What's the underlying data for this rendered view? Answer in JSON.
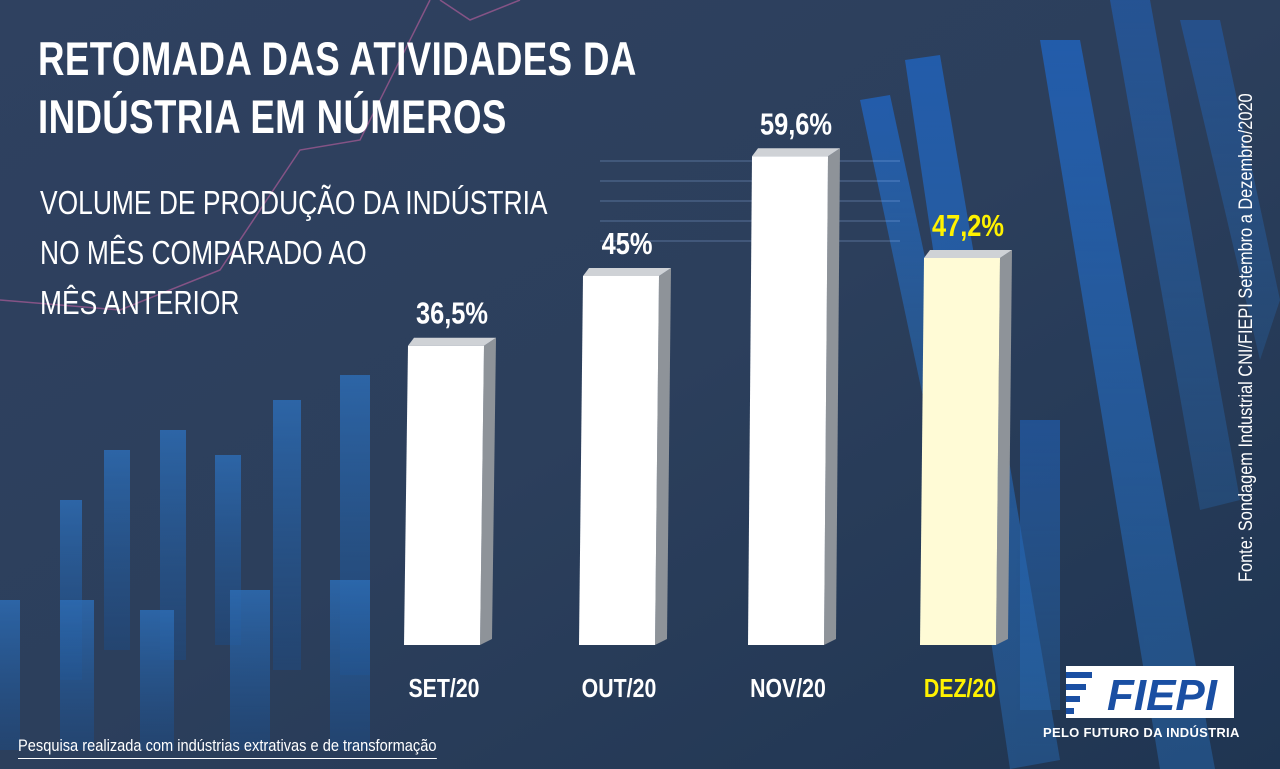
{
  "header": {
    "title_line1": "RETOMADA DAS ATIVIDADES DA",
    "title_line2": "INDÚSTRIA EM NÚMEROS",
    "subtitle_line1": "VOLUME DE PRODUÇÃO DA INDÚSTRIA",
    "subtitle_line2": "NO MÊS COMPARADO AO",
    "subtitle_line3": "MÊS ANTERIOR"
  },
  "source": "Fonte: Sondagem Industrial CNI/FIEPI Setembro a Dezembro/2020",
  "footnote": "Pesquisa realizada com indústrias extrativas e de transformação",
  "brand": {
    "logo_text": "FIEPI",
    "tagline": "PELO FUTURO DA INDÚSTRIA"
  },
  "chart_data": {
    "type": "bar",
    "categories": [
      "SET/20",
      "OUT/20",
      "NOV/20",
      "DEZ/20"
    ],
    "values": [
      36.5,
      45,
      59.6,
      47.2
    ],
    "value_labels": [
      "36,5%",
      "45%",
      "59,6%",
      "47,2%"
    ],
    "highlight_index": 3,
    "ylim": [
      0,
      65
    ],
    "grid": false,
    "colors": {
      "bar": "#ffffff",
      "bar_highlight": "#fffbd6",
      "label": "#ffffff",
      "label_highlight": "#fff200"
    }
  }
}
